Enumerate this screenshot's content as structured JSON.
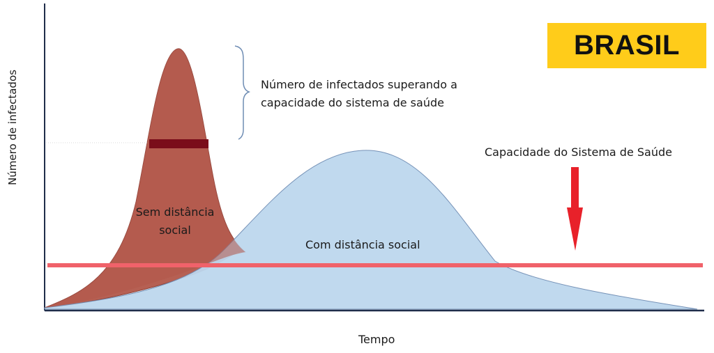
{
  "badge": {
    "text": "BRASIL",
    "color": "#ffcc1a"
  },
  "axes": {
    "ylabel": "Número de infectados",
    "xlabel": "Tempo"
  },
  "annotations": {
    "excess_line1": "Número de infectados superando a",
    "excess_line2": "capacidade do sistema de saúde",
    "capacity": "Capacidade do Sistema de Saúde",
    "no_distance_line1": "Sem distância",
    "no_distance_line2": "social",
    "with_distance": "Com distância social"
  },
  "colors": {
    "no_distance_fill": "#b3584a",
    "with_distance_fill": "#bdd7ee",
    "capacity_line": "#f0626a",
    "arrow": "#e8212a",
    "peak_marker": "#7a0d1a"
  }
}
